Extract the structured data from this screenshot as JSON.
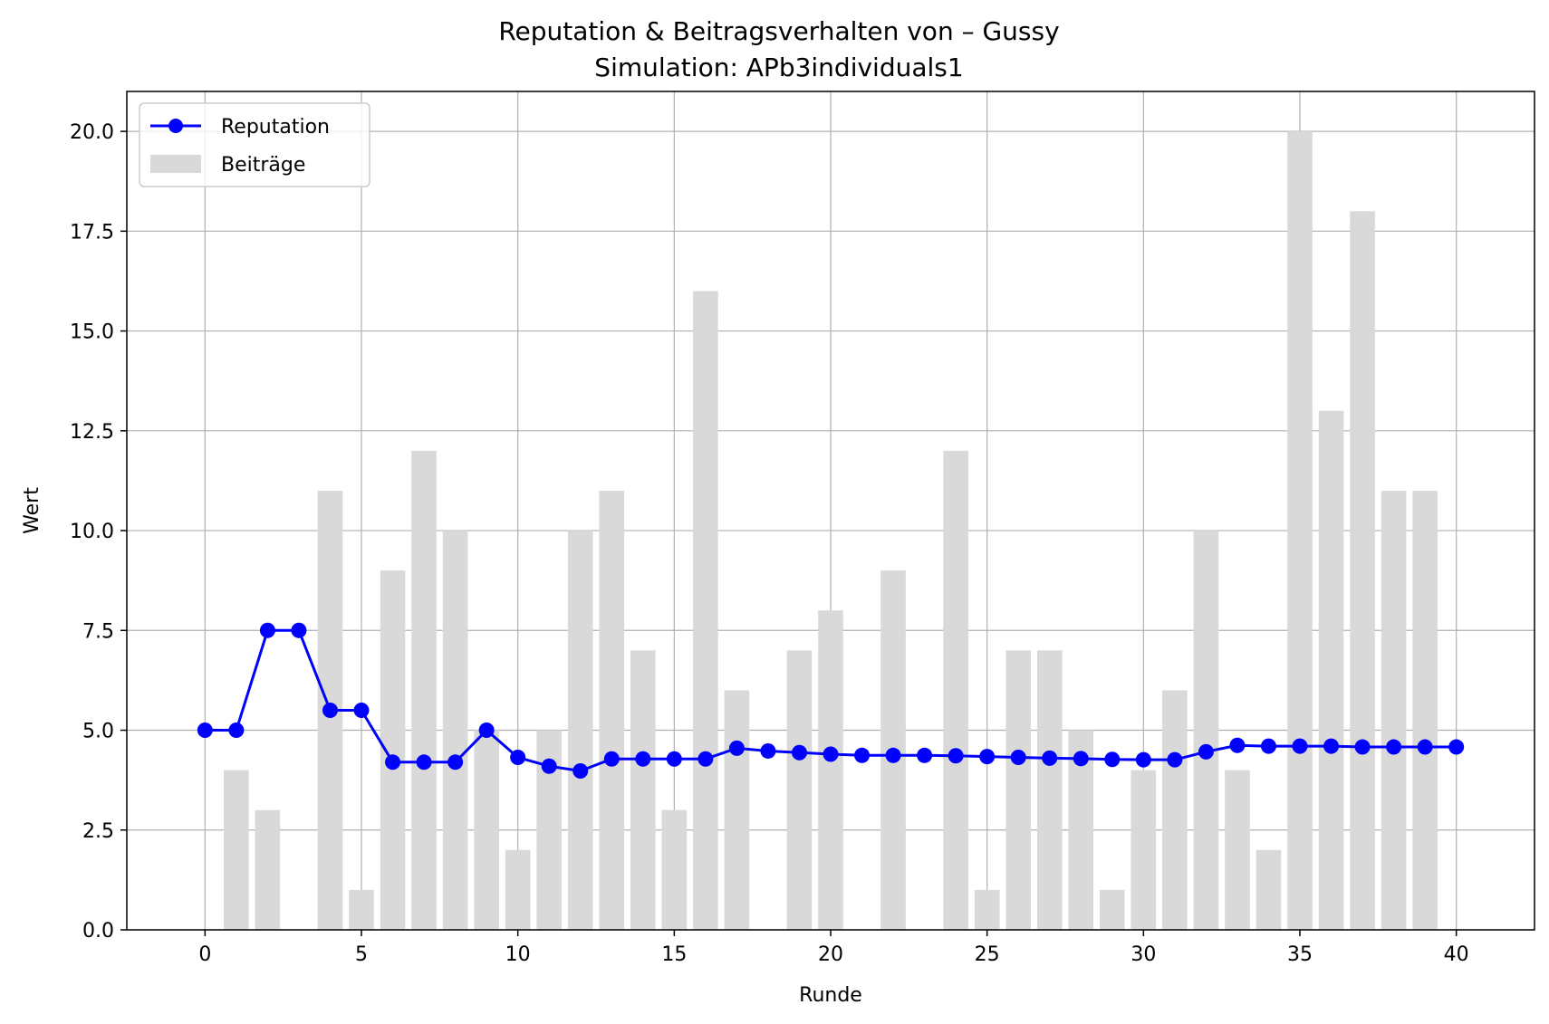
{
  "chart_data": {
    "type": "bar",
    "title": "Reputation & Beitragsverhalten von – Gussy",
    "subtitle": "Simulation: APb3individuals1",
    "xlabel": "Runde",
    "ylabel": "Wert",
    "xlim": [
      -2.5,
      42.5
    ],
    "ylim": [
      0,
      21
    ],
    "x_ticks": [
      0,
      5,
      10,
      15,
      20,
      25,
      30,
      35,
      40
    ],
    "x_tick_labels": [
      "0",
      "5",
      "10",
      "15",
      "20",
      "25",
      "30",
      "35",
      "40"
    ],
    "y_ticks": [
      0,
      2.5,
      5,
      7.5,
      10,
      12.5,
      15,
      17.5,
      20
    ],
    "y_tick_labels": [
      "0.0",
      "2.5",
      "5.0",
      "7.5",
      "10.0",
      "12.5",
      "15.0",
      "17.5",
      "20.0"
    ],
    "grid": true,
    "legend_position": "top-left",
    "series": [
      {
        "name": "Reputation",
        "kind": "line",
        "marker": "circle",
        "color": "#0000ff",
        "x": [
          0,
          1,
          2,
          3,
          4,
          5,
          6,
          7,
          8,
          9,
          10,
          11,
          12,
          13,
          14,
          15,
          16,
          17,
          18,
          19,
          20,
          21,
          22,
          23,
          24,
          25,
          26,
          27,
          28,
          29,
          30,
          31,
          32,
          33,
          34,
          35,
          36,
          37,
          38,
          39,
          40
        ],
        "values": [
          5.0,
          5.0,
          7.5,
          7.5,
          5.5,
          5.5,
          4.2,
          4.2,
          4.2,
          5.0,
          4.32,
          4.1,
          3.98,
          4.28,
          4.28,
          4.28,
          4.28,
          4.55,
          4.48,
          4.44,
          4.4,
          4.37,
          4.37,
          4.37,
          4.36,
          4.34,
          4.32,
          4.3,
          4.29,
          4.27,
          4.26,
          4.26,
          4.46,
          4.62,
          4.6,
          4.6,
          4.6,
          4.58,
          4.58,
          4.58,
          4.58
        ]
      },
      {
        "name": "Beiträge",
        "kind": "bar",
        "color": "#d9d9d9",
        "x": [
          0,
          1,
          2,
          3,
          4,
          5,
          6,
          7,
          8,
          9,
          10,
          11,
          12,
          13,
          14,
          15,
          16,
          17,
          18,
          19,
          20,
          21,
          22,
          23,
          24,
          25,
          26,
          27,
          28,
          29,
          30,
          31,
          32,
          33,
          34,
          35,
          36,
          37,
          38,
          39
        ],
        "values": [
          0,
          4,
          3,
          0,
          11,
          1,
          9,
          12,
          10,
          5,
          2,
          5,
          10,
          11,
          7,
          3,
          16,
          6,
          0,
          7,
          8,
          0,
          9,
          0,
          12,
          1,
          7,
          7,
          5,
          1,
          4,
          6,
          10,
          4,
          2,
          20,
          13,
          18,
          11,
          11
        ]
      }
    ]
  }
}
